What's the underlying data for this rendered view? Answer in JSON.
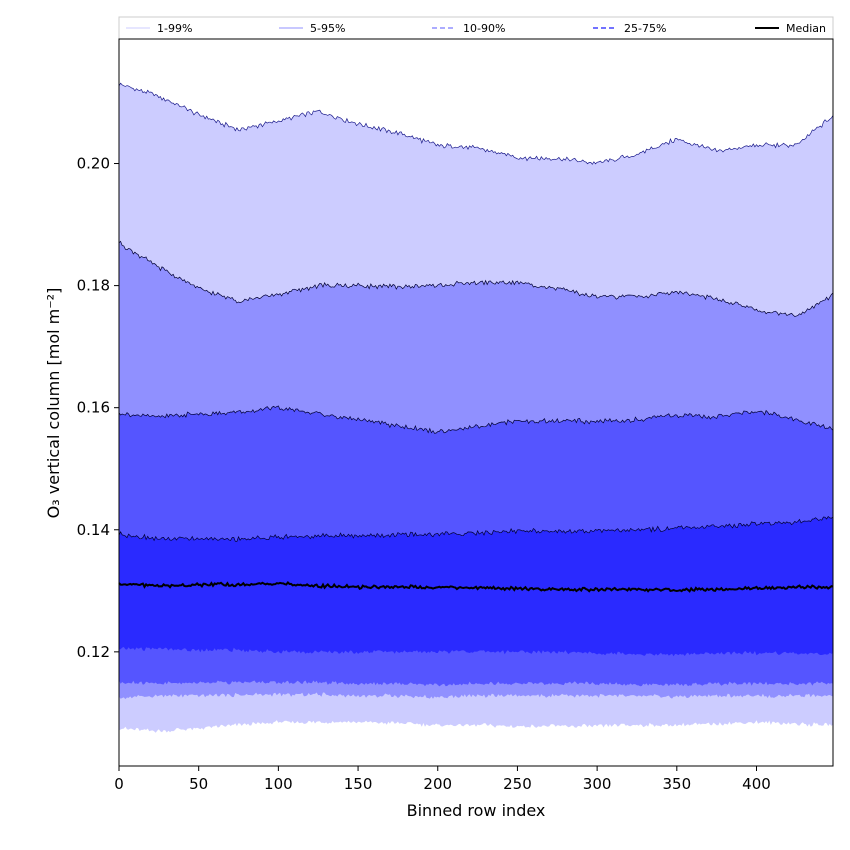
{
  "chart_data": {
    "type": "area",
    "xlabel": "Binned row index",
    "ylabel": "O₃ vertical column [mol m⁻²]",
    "xlim": [
      0,
      448
    ],
    "ylim": [
      0.1013,
      0.2204
    ],
    "x_ticks": [
      0,
      50,
      100,
      150,
      200,
      250,
      300,
      350,
      400
    ],
    "y_ticks": [
      0.12,
      0.14,
      0.16,
      0.18,
      0.2
    ],
    "y_tick_labels": [
      "0.12",
      "0.14",
      "0.16",
      "0.18",
      "0.20"
    ],
    "grid": false,
    "legend_position": "top, outside plot, horizontal",
    "legend": [
      "1-99%",
      "5-95%",
      "10-90%",
      "25-75%",
      "Median"
    ],
    "x": [
      0,
      25,
      50,
      75,
      100,
      125,
      150,
      175,
      200,
      225,
      250,
      275,
      300,
      325,
      350,
      375,
      400,
      425,
      448
    ],
    "series": [
      {
        "name": "1-99%",
        "color": "#ccccff",
        "lower": [
          0.1075,
          0.107,
          0.1075,
          0.108,
          0.1085,
          0.1085,
          0.1085,
          0.1083,
          0.108,
          0.108,
          0.1078,
          0.1078,
          0.1078,
          0.108,
          0.108,
          0.1082,
          0.1085,
          0.1082,
          0.108
        ],
        "upper": [
          0.213,
          0.211,
          0.208,
          0.2055,
          0.207,
          0.2085,
          0.2065,
          0.205,
          0.203,
          0.2025,
          0.201,
          0.2008,
          0.2,
          0.2015,
          0.204,
          0.202,
          0.203,
          0.203,
          0.2078
        ]
      },
      {
        "name": "5-95%",
        "color": "#9090ff",
        "lower": [
          0.1125,
          0.1128,
          0.1128,
          0.113,
          0.113,
          0.113,
          0.1128,
          0.1128,
          0.1126,
          0.1128,
          0.1128,
          0.1128,
          0.1128,
          0.1128,
          0.1126,
          0.1128,
          0.1128,
          0.1128,
          0.1128
        ],
        "upper": [
          0.187,
          0.183,
          0.1795,
          0.1775,
          0.1785,
          0.18,
          0.18,
          0.1798,
          0.18,
          0.1805,
          0.1805,
          0.1795,
          0.1782,
          0.1782,
          0.179,
          0.1778,
          0.176,
          0.175,
          0.1785
        ]
      },
      {
        "name": "10-90%",
        "color": "#5555ff",
        "lower": [
          0.115,
          0.1148,
          0.115,
          0.115,
          0.115,
          0.115,
          0.1148,
          0.1148,
          0.1146,
          0.1148,
          0.1148,
          0.1148,
          0.1148,
          0.1146,
          0.1146,
          0.1148,
          0.1148,
          0.1148,
          0.1148
        ],
        "upper": [
          0.159,
          0.1585,
          0.159,
          0.1592,
          0.16,
          0.159,
          0.158,
          0.157,
          0.156,
          0.157,
          0.1578,
          0.1578,
          0.1578,
          0.158,
          0.1588,
          0.1585,
          0.1595,
          0.158,
          0.1565
        ]
      },
      {
        "name": "25-75%",
        "color": "#2a2aff",
        "lower": [
          0.1205,
          0.1205,
          0.1203,
          0.1203,
          0.12,
          0.12,
          0.12,
          0.12,
          0.12,
          0.12,
          0.12,
          0.12,
          0.1198,
          0.1196,
          0.1196,
          0.1198,
          0.1198,
          0.1198,
          0.1198
        ],
        "upper": [
          0.1393,
          0.1385,
          0.1385,
          0.1385,
          0.1388,
          0.139,
          0.139,
          0.1392,
          0.1393,
          0.1395,
          0.1398,
          0.1398,
          0.1398,
          0.14,
          0.1402,
          0.1405,
          0.141,
          0.1412,
          0.1422
        ]
      }
    ],
    "median": {
      "name": "Median",
      "color": "#000000",
      "values": [
        0.1312,
        0.1308,
        0.131,
        0.131,
        0.1312,
        0.1308,
        0.1306,
        0.1306,
        0.1306,
        0.1305,
        0.1304,
        0.1302,
        0.1302,
        0.1302,
        0.1302,
        0.1302,
        0.1304,
        0.1306,
        0.1306
      ]
    }
  }
}
